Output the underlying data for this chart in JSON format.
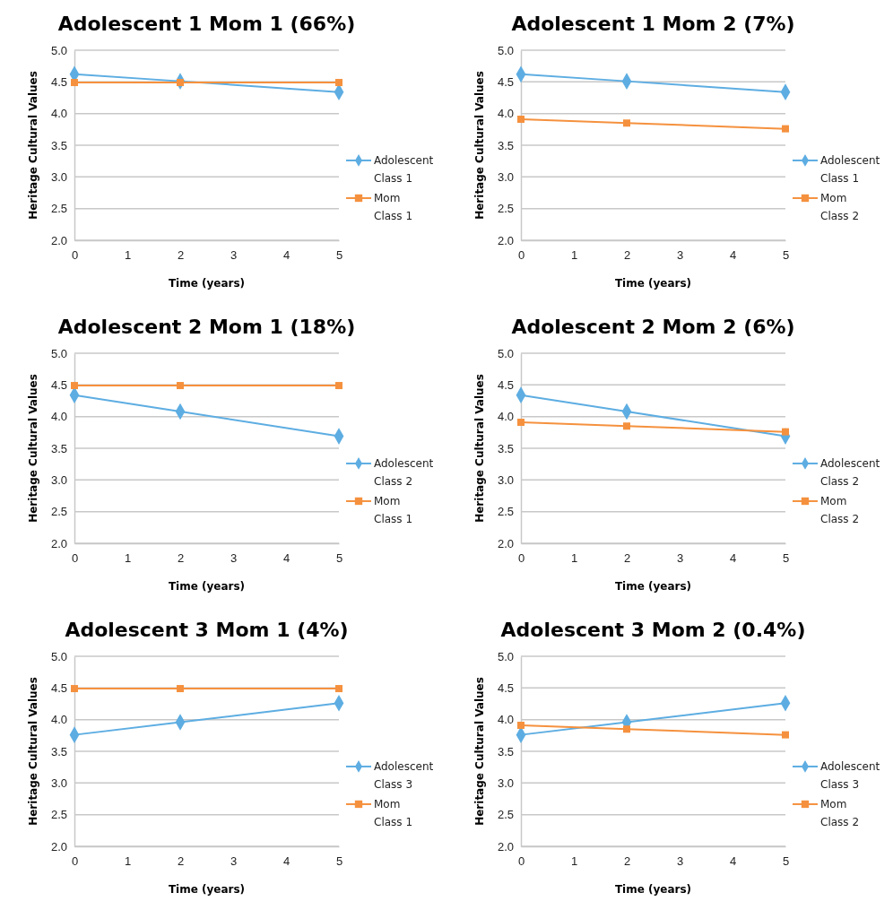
{
  "chart_data": [
    {
      "type": "line",
      "title": "Adolescent 1 Mom 1 (66%)",
      "xlabel": "Time (years)",
      "ylabel": "Heritage Cultural Values",
      "xlim": [
        0,
        5
      ],
      "xticks": [
        0,
        1,
        2,
        3,
        4,
        5
      ],
      "ylim": [
        2,
        5
      ],
      "yticks": [
        {
          "value": 2,
          "label": "2.0"
        },
        {
          "value": 2.5,
          "label": "2.5"
        },
        {
          "value": 3,
          "label": "3.0"
        },
        {
          "value": 3.5,
          "label": "3.5"
        },
        {
          "value": 4,
          "label": "4.0"
        },
        {
          "value": 4.5,
          "label": "4.5"
        },
        {
          "value": 5,
          "label": "5.0"
        }
      ],
      "grid": "y",
      "legend": "right",
      "x": [
        0,
        2,
        5
      ],
      "series": [
        {
          "name": "Adolescent Class 1",
          "color": "#5dade2",
          "marker": "diamond",
          "values": [
            4.62,
            4.51,
            4.34
          ]
        },
        {
          "name": "Mom Class 1",
          "color": "#f5913e",
          "marker": "square",
          "values": [
            4.49,
            4.49,
            4.49
          ]
        }
      ]
    },
    {
      "type": "line",
      "title": "Adolescent 1 Mom 2 (7%)",
      "xlabel": "Time (years)",
      "ylabel": "Heritage Cultural Values",
      "xlim": [
        0,
        5
      ],
      "xticks": [
        0,
        1,
        2,
        3,
        4,
        5
      ],
      "ylim": [
        2,
        5
      ],
      "yticks": [
        {
          "value": 2,
          "label": "2.0"
        },
        {
          "value": 2.5,
          "label": "2.5"
        },
        {
          "value": 3,
          "label": "3.0"
        },
        {
          "value": 3.5,
          "label": "3.5"
        },
        {
          "value": 4,
          "label": "4.0"
        },
        {
          "value": 4.5,
          "label": "4.5"
        },
        {
          "value": 5,
          "label": "5.0"
        }
      ],
      "grid": "y",
      "legend": "right",
      "x": [
        0,
        2,
        5
      ],
      "series": [
        {
          "name": "Adolescent Class 1",
          "color": "#5dade2",
          "marker": "diamond",
          "values": [
            4.62,
            4.51,
            4.34
          ]
        },
        {
          "name": "Mom Class 2",
          "color": "#f5913e",
          "marker": "square",
          "values": [
            3.91,
            3.85,
            3.76
          ]
        }
      ]
    },
    {
      "type": "line",
      "title": "Adolescent 2 Mom 1 (18%)",
      "xlabel": "Time (years)",
      "ylabel": "Heritage Cultural Values",
      "xlim": [
        0,
        5
      ],
      "xticks": [
        0,
        1,
        2,
        3,
        4,
        5
      ],
      "ylim": [
        2,
        5
      ],
      "yticks": [
        {
          "value": 2,
          "label": "2.0"
        },
        {
          "value": 2.5,
          "label": "2.5"
        },
        {
          "value": 3,
          "label": "3.0"
        },
        {
          "value": 3.5,
          "label": "3.5"
        },
        {
          "value": 4,
          "label": "4.0"
        },
        {
          "value": 4.5,
          "label": "4.5"
        },
        {
          "value": 5,
          "label": "5.0"
        }
      ],
      "grid": "y",
      "legend": "right",
      "x": [
        0,
        2,
        5
      ],
      "series": [
        {
          "name": "Adolescent Class 2",
          "color": "#5dade2",
          "marker": "diamond",
          "values": [
            4.34,
            4.08,
            3.69
          ]
        },
        {
          "name": "Mom Class 1",
          "color": "#f5913e",
          "marker": "square",
          "values": [
            4.49,
            4.49,
            4.49
          ]
        }
      ]
    },
    {
      "type": "line",
      "title": "Adolescent 2 Mom 2 (6%)",
      "xlabel": "Time (years)",
      "ylabel": "Heritage Cultural Values",
      "xlim": [
        0,
        5
      ],
      "xticks": [
        0,
        1,
        2,
        3,
        4,
        5
      ],
      "ylim": [
        2,
        5
      ],
      "yticks": [
        {
          "value": 2,
          "label": "2.0"
        },
        {
          "value": 2.5,
          "label": "2.5"
        },
        {
          "value": 3,
          "label": "3.0"
        },
        {
          "value": 3.5,
          "label": "3.5"
        },
        {
          "value": 4,
          "label": "4.0"
        },
        {
          "value": 4.5,
          "label": "4.5"
        },
        {
          "value": 5,
          "label": "5.0"
        }
      ],
      "grid": "y",
      "legend": "right",
      "x": [
        0,
        2,
        5
      ],
      "series": [
        {
          "name": "Adolescent Class 2",
          "color": "#5dade2",
          "marker": "diamond",
          "values": [
            4.34,
            4.08,
            3.69
          ]
        },
        {
          "name": "Mom Class 2",
          "color": "#f5913e",
          "marker": "square",
          "values": [
            3.91,
            3.85,
            3.76
          ]
        }
      ]
    },
    {
      "type": "line",
      "title": "Adolescent 3 Mom 1 (4%)",
      "xlabel": "Time (years)",
      "ylabel": "Heritage Cultural Values",
      "xlim": [
        0,
        5
      ],
      "xticks": [
        0,
        1,
        2,
        3,
        4,
        5
      ],
      "ylim": [
        2,
        5
      ],
      "yticks": [
        {
          "value": 2,
          "label": "2.0"
        },
        {
          "value": 2.5,
          "label": "2.5"
        },
        {
          "value": 3,
          "label": "3.0"
        },
        {
          "value": 3.5,
          "label": "3.5"
        },
        {
          "value": 4,
          "label": "4.0"
        },
        {
          "value": 4.5,
          "label": "4.5"
        },
        {
          "value": 5,
          "label": "5.0"
        }
      ],
      "grid": "y",
      "legend": "right",
      "x": [
        0,
        2,
        5
      ],
      "series": [
        {
          "name": "Adolescent Class 3",
          "color": "#5dade2",
          "marker": "diamond",
          "values": [
            3.76,
            3.96,
            4.26
          ]
        },
        {
          "name": "Mom Class 1",
          "color": "#f5913e",
          "marker": "square",
          "values": [
            4.49,
            4.49,
            4.49
          ]
        }
      ]
    },
    {
      "type": "line",
      "title": "Adolescent 3 Mom 2 (0.4%)",
      "xlabel": "Time (years)",
      "ylabel": "Heritage Cultural Values",
      "xlim": [
        0,
        5
      ],
      "xticks": [
        0,
        1,
        2,
        3,
        4,
        5
      ],
      "ylim": [
        2,
        5
      ],
      "yticks": [
        {
          "value": 2,
          "label": "2.0"
        },
        {
          "value": 2.5,
          "label": "2.5"
        },
        {
          "value": 3,
          "label": "3.0"
        },
        {
          "value": 3.5,
          "label": "3.5"
        },
        {
          "value": 4,
          "label": "4.0"
        },
        {
          "value": 4.5,
          "label": "4.5"
        },
        {
          "value": 5,
          "label": "5.0"
        }
      ],
      "grid": "y",
      "legend": "right",
      "x": [
        0,
        2,
        5
      ],
      "series": [
        {
          "name": "Adolescent Class 3",
          "color": "#5dade2",
          "marker": "diamond",
          "values": [
            3.76,
            3.96,
            4.26
          ]
        },
        {
          "name": "Mom Class 2",
          "color": "#f5913e",
          "marker": "square",
          "values": [
            3.91,
            3.85,
            3.76
          ]
        }
      ]
    }
  ]
}
